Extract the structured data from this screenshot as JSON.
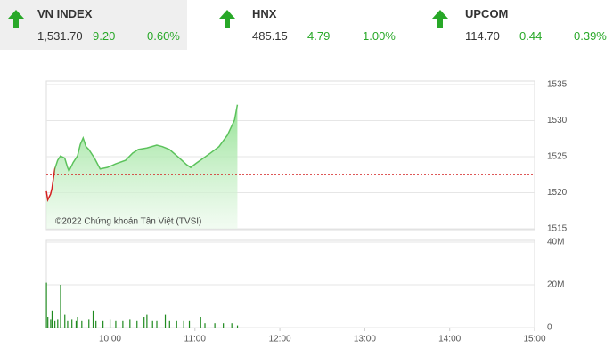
{
  "tabs": [
    {
      "name": "VN INDEX",
      "value": "1,531.70",
      "change": "9.20",
      "percent": "0.60%"
    },
    {
      "name": "HNX",
      "value": "485.15",
      "change": "4.79",
      "percent": "1.00%"
    },
    {
      "name": "UPCOM",
      "value": "114.70",
      "change": "0.44",
      "percent": "0.39%"
    }
  ],
  "chart_data": [
    {
      "type": "area",
      "watermark": "©2022 Chứng khoán Tân Việt (TVSI)",
      "reference": 1522.5,
      "x": [
        555,
        556,
        558,
        559,
        560,
        561,
        563,
        565,
        568,
        570,
        571,
        574,
        577,
        579,
        581,
        583,
        585,
        589,
        593,
        598,
        604,
        611,
        616,
        620,
        626,
        633,
        637,
        642,
        649,
        654,
        657,
        661,
        666,
        671,
        677,
        683,
        688,
        690
      ],
      "values": [
        1520.2,
        1519.0,
        1519.8,
        1520.6,
        1522.0,
        1523.3,
        1524.5,
        1525.1,
        1524.8,
        1523.5,
        1523.0,
        1524.2,
        1525.1,
        1526.7,
        1527.6,
        1526.4,
        1526.0,
        1524.8,
        1523.3,
        1523.5,
        1524.0,
        1524.5,
        1525.5,
        1526.0,
        1526.2,
        1526.6,
        1526.4,
        1526.0,
        1524.8,
        1523.9,
        1523.5,
        1524.1,
        1524.8,
        1525.5,
        1526.4,
        1528.0,
        1530.1,
        1532.2
      ],
      "color": "#5cc25c",
      "down_color": "#d42020",
      "reference_color": "#d42020",
      "xlim": [
        555,
        900
      ],
      "ylim": [
        1515,
        1535
      ],
      "yticks": [
        1515,
        1520,
        1525,
        1530,
        1535
      ],
      "grid": true
    },
    {
      "type": "bar",
      "x": [
        555,
        556,
        558,
        559,
        561,
        563,
        565,
        568,
        570,
        573,
        576,
        577,
        580,
        585,
        588,
        590,
        595,
        600,
        604,
        609,
        614,
        619,
        624,
        626,
        630,
        633,
        639,
        642,
        647,
        652,
        656,
        664,
        667,
        674,
        680,
        686,
        690
      ],
      "values": [
        21000000,
        5000000,
        4000000,
        8000000,
        3000000,
        4000000,
        20000000,
        6000000,
        3000000,
        4000000,
        3000000,
        5000000,
        3000000,
        4000000,
        8000000,
        3000000,
        3000000,
        4000000,
        3000000,
        3000000,
        4000000,
        3000000,
        5000000,
        6000000,
        3000000,
        3000000,
        6000000,
        3000000,
        3000000,
        3000000,
        3000000,
        5000000,
        2000000,
        2000000,
        2000000,
        2000000,
        1000000
      ],
      "color": "#1f8a1f",
      "xlim": [
        555,
        900
      ],
      "ylim": [
        0,
        40000000
      ],
      "yticks": [
        {
          "value": 0,
          "label": "0"
        },
        {
          "value": 20000000,
          "label": "20M"
        },
        {
          "value": 40000000,
          "label": "40M"
        }
      ],
      "xticks": [
        {
          "value": 600,
          "label": "10:00"
        },
        {
          "value": 660,
          "label": "11:00"
        },
        {
          "value": 720,
          "label": "12:00"
        },
        {
          "value": 780,
          "label": "13:00"
        },
        {
          "value": 840,
          "label": "14:00"
        },
        {
          "value": 900,
          "label": "15:00"
        }
      ],
      "grid": true
    }
  ]
}
